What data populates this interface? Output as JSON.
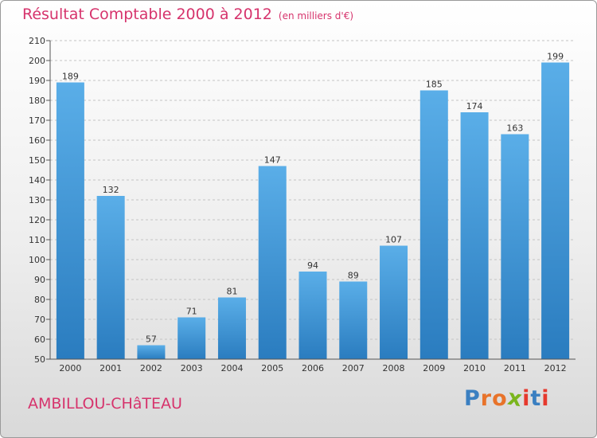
{
  "header": {
    "title": "Résultat Comptable 2000 à 2012",
    "subtitle": "(en milliers d'€)"
  },
  "footer": {
    "commune": "AMBILLOU-CHâTEAU",
    "logo_letters": [
      "P",
      "r",
      "o",
      "x",
      "i",
      "t",
      "i"
    ],
    "logo_colors": [
      "#3a7fc1",
      "#e8732a",
      "#e8732a",
      "#7ab51d",
      "#e6392d",
      "#3a7fc1",
      "#e6392d"
    ]
  },
  "chart_data": {
    "type": "bar",
    "title": "Résultat Comptable 2000 à 2012",
    "subtitle": "(en milliers d'€)",
    "categories": [
      "2000",
      "2001",
      "2002",
      "2003",
      "2004",
      "2005",
      "2006",
      "2007",
      "2008",
      "2009",
      "2010",
      "2011",
      "2012"
    ],
    "values": [
      189,
      132,
      57,
      71,
      81,
      147,
      94,
      89,
      107,
      185,
      174,
      163,
      199
    ],
    "data_labels": [
      "189",
      "132",
      "57",
      "71",
      "81",
      "147",
      "94",
      "89",
      "107",
      "185",
      "174",
      "163",
      "199"
    ],
    "y_ticks": [
      "50",
      "60",
      "70",
      "80",
      "90",
      "100",
      "110",
      "120",
      "130",
      "140",
      "150",
      "160",
      "170",
      "180",
      "190",
      "200",
      "210"
    ],
    "ylim": [
      50,
      210
    ],
    "grid": "horizontal dashed",
    "bar_color": "#3f97d9",
    "bar_color_light": "#5aaee8",
    "bar_color_dark": "#2a7cbf"
  }
}
